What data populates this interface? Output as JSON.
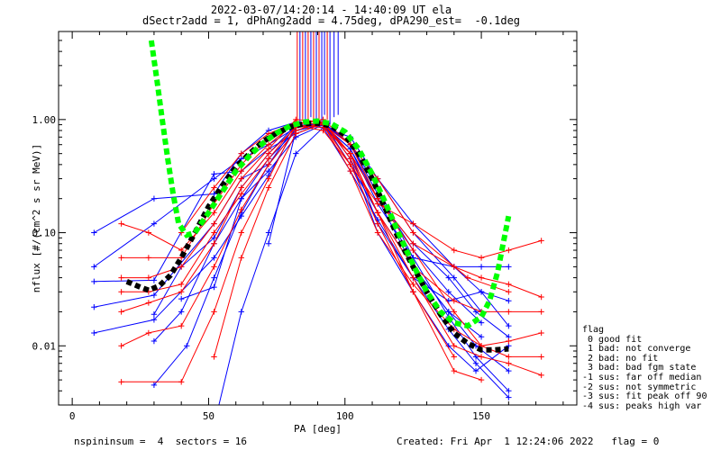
{
  "title": {
    "line1": "2022-03-07/14:20:14 - 14:40:09 UT ela",
    "line2": "dSectr2add = 1, dPhAng2add = 4.75deg, dPA290_est=  -0.1deg"
  },
  "footer": {
    "left": "nspininsum =  4  sectors = 16",
    "right": "Created: Fri Apr  1 12:24:06 2022   flag = 0"
  },
  "legend": {
    "title": "flag",
    "items": [
      " 0 good fit",
      " 1 bad: not converge",
      " 2 bad: no fit",
      " 3 bad: bad fgm state",
      "-1 sus: far off median",
      "-2 sus: not symmetric",
      "-3 sus: fit peak off 90",
      "-4 sus: peaks high var"
    ]
  },
  "colors": {
    "blue_sectors": "#0000ff",
    "red_sectors": "#ff0000",
    "median": "#000000",
    "fit": "#00ff00"
  },
  "chart_data": {
    "type": "line",
    "xlabel": "PA [deg]",
    "ylabel": "nflux [#/(cm^2 s sr MeV)]",
    "xlim": [
      -5,
      185
    ],
    "ylim": [
      0.003,
      6.0
    ],
    "yscale": "log",
    "xticks": [
      0,
      50,
      100,
      150
    ],
    "yticks": [
      {
        "v": 0.01,
        "label": "0.01"
      },
      {
        "v": 0.1,
        "label": "0.10"
      },
      {
        "v": 1.0,
        "label": "1.00"
      }
    ],
    "vlines": [
      {
        "x": 82.5,
        "y0": 0.95,
        "color": "#ff0000"
      },
      {
        "x": 83.5,
        "y0": 0.85,
        "color": "#0000ff"
      },
      {
        "x": 84.5,
        "y0": 1.0,
        "color": "#ff0000"
      },
      {
        "x": 85.5,
        "y0": 0.95,
        "color": "#0000ff"
      },
      {
        "x": 86.5,
        "y0": 0.9,
        "color": "#ff0000"
      },
      {
        "x": 87.5,
        "y0": 1.05,
        "color": "#0000ff"
      },
      {
        "x": 88.5,
        "y0": 0.92,
        "color": "#ff0000"
      },
      {
        "x": 89.5,
        "y0": 1.0,
        "color": "#0000ff"
      },
      {
        "x": 90.5,
        "y0": 0.88,
        "color": "#ff0000"
      },
      {
        "x": 91.5,
        "y0": 0.95,
        "color": "#0000ff"
      },
      {
        "x": 92.5,
        "y0": 1.1,
        "color": "#0000ff"
      },
      {
        "x": 93.5,
        "y0": 1.0,
        "color": "#ff0000"
      },
      {
        "x": 94.5,
        "y0": 0.9,
        "color": "#0000ff"
      },
      {
        "x": 96.0,
        "y0": 1.05,
        "color": "#0000ff"
      },
      {
        "x": 97.5,
        "y0": 1.1,
        "color": "#0000ff"
      }
    ],
    "series": [
      {
        "color": "#0000ff",
        "x": [
          8,
          30,
          52,
          62,
          72,
          82,
          92,
          102,
          112,
          125,
          138,
          148,
          160
        ],
        "y": [
          0.1,
          0.2,
          0.22,
          0.5,
          0.8,
          0.95,
          0.9,
          0.55,
          0.2,
          0.08,
          0.04,
          0.02,
          0.012
        ]
      },
      {
        "color": "#0000ff",
        "x": [
          8,
          30,
          52,
          62,
          72,
          82,
          92,
          102,
          112,
          125,
          138,
          148,
          160
        ],
        "y": [
          0.05,
          0.12,
          0.3,
          0.45,
          0.6,
          0.85,
          0.95,
          0.4,
          0.15,
          0.05,
          0.02,
          0.01,
          0.006
        ]
      },
      {
        "color": "#0000ff",
        "x": [
          8,
          30,
          52,
          62,
          72,
          82,
          92,
          102,
          112,
          125,
          138,
          148,
          160
        ],
        "y": [
          0.037,
          0.038,
          0.33,
          0.35,
          0.55,
          0.75,
          0.92,
          0.6,
          0.25,
          0.06,
          0.018,
          0.008,
          0.004
        ]
      },
      {
        "color": "#0000ff",
        "x": [
          8,
          30,
          52,
          62,
          72,
          82,
          92,
          102,
          112,
          125,
          138,
          148,
          160
        ],
        "y": [
          0.022,
          0.028,
          0.12,
          0.3,
          0.4,
          0.9,
          0.88,
          0.5,
          0.12,
          0.04,
          0.014,
          0.007,
          0.0035
        ]
      },
      {
        "color": "#0000ff",
        "x": [
          8,
          30,
          52,
          62,
          72,
          82,
          92,
          102,
          112,
          125,
          138,
          148,
          160
        ],
        "y": [
          0.013,
          0.017,
          0.06,
          0.14,
          0.32,
          0.85,
          0.95,
          0.45,
          0.1,
          0.03,
          0.01,
          0.006,
          0.01
        ]
      },
      {
        "color": "#0000ff",
        "x": [
          30,
          40,
          52,
          62,
          72,
          82,
          92,
          102,
          112,
          125,
          140,
          150,
          160
        ],
        "y": [
          0.011,
          0.02,
          0.08,
          0.2,
          0.45,
          0.8,
          0.9,
          0.55,
          0.18,
          0.06,
          0.05,
          0.05,
          0.05
        ]
      },
      {
        "color": "#0000ff",
        "x": [
          30,
          40,
          52,
          62,
          72,
          82,
          92,
          102,
          112,
          125,
          138,
          150,
          160
        ],
        "y": [
          0.019,
          0.05,
          0.09,
          0.25,
          0.5,
          0.9,
          0.85,
          0.35,
          0.13,
          0.04,
          0.025,
          0.03,
          0.025
        ]
      },
      {
        "color": "#0000ff",
        "x": [
          30,
          42,
          52,
          62,
          72,
          82,
          92,
          102,
          112,
          125,
          138,
          150
        ],
        "y": [
          0.0045,
          0.01,
          0.04,
          0.15,
          0.4,
          0.8,
          0.95,
          0.6,
          0.22,
          0.07,
          0.03,
          0.016
        ]
      },
      {
        "color": "#0000ff",
        "x": [
          40,
          52,
          62,
          72,
          82,
          92,
          102,
          112,
          125,
          138,
          150
        ],
        "y": [
          0.026,
          0.033,
          0.2,
          0.35,
          0.7,
          0.9,
          0.5,
          0.2,
          0.05,
          0.02,
          0.012
        ]
      },
      {
        "color": "#0000ff",
        "x": [
          53,
          62,
          72,
          82,
          92,
          102,
          112,
          125,
          140,
          150
        ],
        "y": [
          0.0025,
          0.02,
          0.1,
          0.5,
          0.85,
          0.7,
          0.3,
          0.1,
          0.04,
          0.02
        ]
      },
      {
        "color": "#0000ff",
        "x": [
          72,
          82,
          92,
          102,
          112,
          125,
          140,
          150,
          160
        ],
        "y": [
          0.08,
          0.8,
          0.9,
          0.6,
          0.3,
          0.12,
          0.05,
          0.03,
          0.015
        ]
      },
      {
        "color": "#ff0000",
        "x": [
          18,
          28,
          40,
          52,
          62,
          72,
          82,
          92,
          102,
          112,
          125,
          140,
          150,
          160,
          172
        ],
        "y": [
          0.12,
          0.1,
          0.07,
          0.15,
          0.35,
          0.6,
          0.95,
          0.9,
          0.4,
          0.18,
          0.12,
          0.07,
          0.06,
          0.07,
          0.085
        ]
      },
      {
        "color": "#ff0000",
        "x": [
          18,
          28,
          40,
          52,
          62,
          72,
          82,
          92,
          102,
          112,
          125,
          140,
          150,
          160,
          172
        ],
        "y": [
          0.06,
          0.06,
          0.06,
          0.18,
          0.4,
          0.7,
          0.9,
          0.85,
          0.5,
          0.2,
          0.08,
          0.05,
          0.04,
          0.035,
          0.027
        ]
      },
      {
        "color": "#ff0000",
        "x": [
          18,
          28,
          40,
          52,
          62,
          72,
          82,
          92,
          102,
          112,
          125,
          140,
          150,
          160,
          172
        ],
        "y": [
          0.04,
          0.04,
          0.05,
          0.12,
          0.3,
          0.55,
          1.0,
          0.95,
          0.45,
          0.15,
          0.05,
          0.025,
          0.02,
          0.02,
          0.02
        ]
      },
      {
        "color": "#ff0000",
        "x": [
          18,
          28,
          40,
          52,
          62,
          72,
          82,
          92,
          102,
          112,
          125,
          140,
          150,
          160,
          172
        ],
        "y": [
          0.02,
          0.024,
          0.03,
          0.08,
          0.25,
          0.5,
          0.85,
          0.9,
          0.35,
          0.1,
          0.035,
          0.014,
          0.01,
          0.011,
          0.013
        ]
      },
      {
        "color": "#ff0000",
        "x": [
          18,
          28,
          40,
          52,
          62,
          72,
          82,
          92,
          102,
          112,
          125,
          140,
          150,
          160,
          172
        ],
        "y": [
          0.01,
          0.013,
          0.015,
          0.05,
          0.16,
          0.4,
          0.8,
          0.95,
          0.5,
          0.15,
          0.04,
          0.01,
          0.008,
          0.007,
          0.0055
        ]
      },
      {
        "color": "#ff0000",
        "x": [
          18,
          40,
          52,
          62,
          72,
          82,
          92,
          102,
          112,
          125,
          140,
          150,
          160,
          172
        ],
        "y": [
          0.0048,
          0.0048,
          0.02,
          0.1,
          0.3,
          0.9,
          1.0,
          0.6,
          0.2,
          0.07,
          0.02,
          0.01,
          0.008,
          0.008
        ]
      },
      {
        "color": "#ff0000",
        "x": [
          18,
          28,
          40,
          52,
          62,
          72,
          82,
          92,
          102,
          112,
          125,
          140,
          150
        ],
        "y": [
          0.03,
          0.03,
          0.035,
          0.1,
          0.22,
          0.45,
          0.88,
          0.8,
          0.4,
          0.12,
          0.03,
          0.006,
          0.005
        ]
      },
      {
        "color": "#ff0000",
        "x": [
          40,
          52,
          62,
          72,
          82,
          92,
          102,
          112,
          125,
          145,
          160
        ],
        "y": [
          0.1,
          0.25,
          0.5,
          0.75,
          0.95,
          0.9,
          0.6,
          0.3,
          0.1,
          0.04,
          0.03
        ]
      },
      {
        "color": "#ff0000",
        "x": [
          52,
          62,
          72,
          82,
          92,
          102,
          112,
          125,
          140
        ],
        "y": [
          0.008,
          0.06,
          0.25,
          0.75,
          0.92,
          0.5,
          0.15,
          0.03,
          0.008
        ]
      }
    ],
    "median": {
      "x": [
        20,
        25,
        28,
        32,
        36,
        40,
        45,
        50,
        55,
        60,
        65,
        70,
        75,
        80,
        85,
        90,
        95,
        100,
        105,
        110,
        115,
        120,
        125,
        130,
        135,
        140,
        145,
        150,
        155,
        160
      ],
      "y": [
        0.037,
        0.033,
        0.031,
        0.034,
        0.042,
        0.06,
        0.1,
        0.17,
        0.26,
        0.38,
        0.5,
        0.64,
        0.76,
        0.86,
        0.92,
        0.93,
        0.88,
        0.73,
        0.5,
        0.3,
        0.16,
        0.085,
        0.05,
        0.03,
        0.019,
        0.013,
        0.0105,
        0.0092,
        0.0092,
        0.0094
      ]
    },
    "fit": {
      "x": [
        29,
        31,
        33,
        35,
        37,
        39,
        42,
        45,
        50,
        55,
        60,
        65,
        70,
        75,
        80,
        85,
        90,
        95,
        100,
        105,
        110,
        115,
        120,
        125,
        130,
        135,
        140,
        145,
        150,
        153,
        156,
        158,
        160
      ],
      "y": [
        5.0,
        2.3,
        1.0,
        0.45,
        0.22,
        0.12,
        0.095,
        0.1,
        0.15,
        0.23,
        0.35,
        0.48,
        0.62,
        0.76,
        0.88,
        0.95,
        0.97,
        0.92,
        0.78,
        0.55,
        0.33,
        0.18,
        0.095,
        0.052,
        0.03,
        0.02,
        0.016,
        0.015,
        0.018,
        0.025,
        0.045,
        0.08,
        0.14
      ]
    }
  }
}
